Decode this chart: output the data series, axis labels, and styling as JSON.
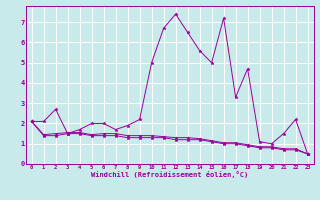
{
  "xlabel": "Windchill (Refroidissement éolien,°C)",
  "background_color": "#c8eaea",
  "grid_color": "#ffffff",
  "line_color": "#990099",
  "xlim": [
    -0.5,
    23.5
  ],
  "ylim": [
    0,
    7.8
  ],
  "xticks": [
    0,
    1,
    2,
    3,
    4,
    5,
    6,
    7,
    8,
    9,
    10,
    11,
    12,
    13,
    14,
    15,
    16,
    17,
    18,
    19,
    20,
    21,
    22,
    23
  ],
  "yticks": [
    0,
    1,
    2,
    3,
    4,
    5,
    6,
    7
  ],
  "series": [
    [
      2.1,
      2.1,
      2.7,
      1.5,
      1.7,
      2.0,
      2.0,
      1.7,
      1.9,
      2.2,
      5.0,
      6.7,
      7.4,
      6.5,
      5.6,
      5.0,
      7.2,
      3.3,
      4.7,
      1.1,
      1.0,
      1.5,
      2.2,
      0.5
    ],
    [
      2.1,
      1.4,
      1.4,
      1.5,
      1.5,
      1.4,
      1.4,
      1.4,
      1.3,
      1.3,
      1.3,
      1.3,
      1.2,
      1.2,
      1.2,
      1.1,
      1.0,
      1.0,
      0.9,
      0.8,
      0.8,
      0.7,
      0.7,
      0.5
    ],
    [
      2.1,
      1.45,
      1.5,
      1.55,
      1.55,
      1.45,
      1.5,
      1.5,
      1.4,
      1.4,
      1.4,
      1.35,
      1.3,
      1.3,
      1.25,
      1.15,
      1.05,
      1.05,
      0.95,
      0.85,
      0.85,
      0.75,
      0.75,
      0.5
    ]
  ]
}
